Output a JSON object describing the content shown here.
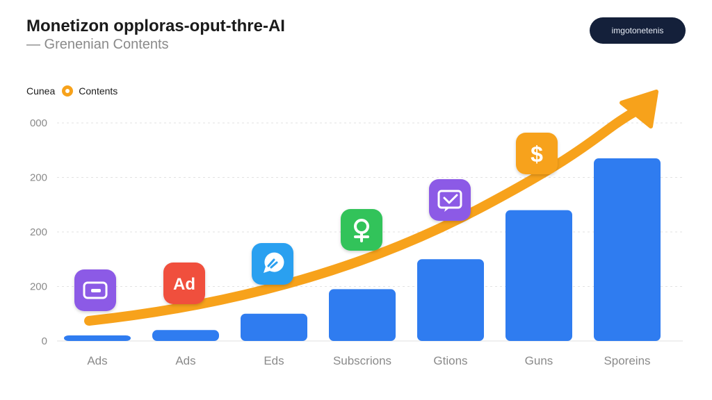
{
  "header": {
    "title": "Monetizon opploras-oput-thre-AI",
    "subtitle": "— Grenenian Contents",
    "pill_label": "imgotonetenis"
  },
  "legend": {
    "label_left": "Cunea",
    "label_right": "Contents"
  },
  "colors": {
    "bar": "#2f7cf0",
    "trend": "#f7a21b",
    "grid": "#e2e2e2"
  },
  "chart_data": {
    "type": "bar",
    "y_tick_labels": [
      "0",
      "200",
      "200",
      "200",
      "000"
    ],
    "categories": [
      "Ads",
      "Ads",
      "Eds",
      "Subscrions",
      "Gtions",
      "Guns",
      "Sporeins"
    ],
    "values": [
      0.1,
      0.2,
      0.5,
      0.95,
      1.5,
      2.4,
      3.35
    ],
    "ylim": [
      0,
      4
    ],
    "grid": true,
    "trend_line": {
      "color": "#f7a21b",
      "arrowhead": true,
      "direction": "increasing"
    },
    "icons": [
      {
        "name": "wallet-icon",
        "color": "#8c5ae6"
      },
      {
        "name": "ad-badge-icon",
        "text": "Ad",
        "color": "#f0503c"
      },
      {
        "name": "chat-bubble-icon",
        "color": "#2aa0f0"
      },
      {
        "name": "coin-icon",
        "color": "#33c35a"
      },
      {
        "name": "message-check-icon",
        "color": "#8c5ae6"
      },
      {
        "name": "dollar-icon",
        "text": "$",
        "color": "#f7a21b"
      }
    ]
  }
}
